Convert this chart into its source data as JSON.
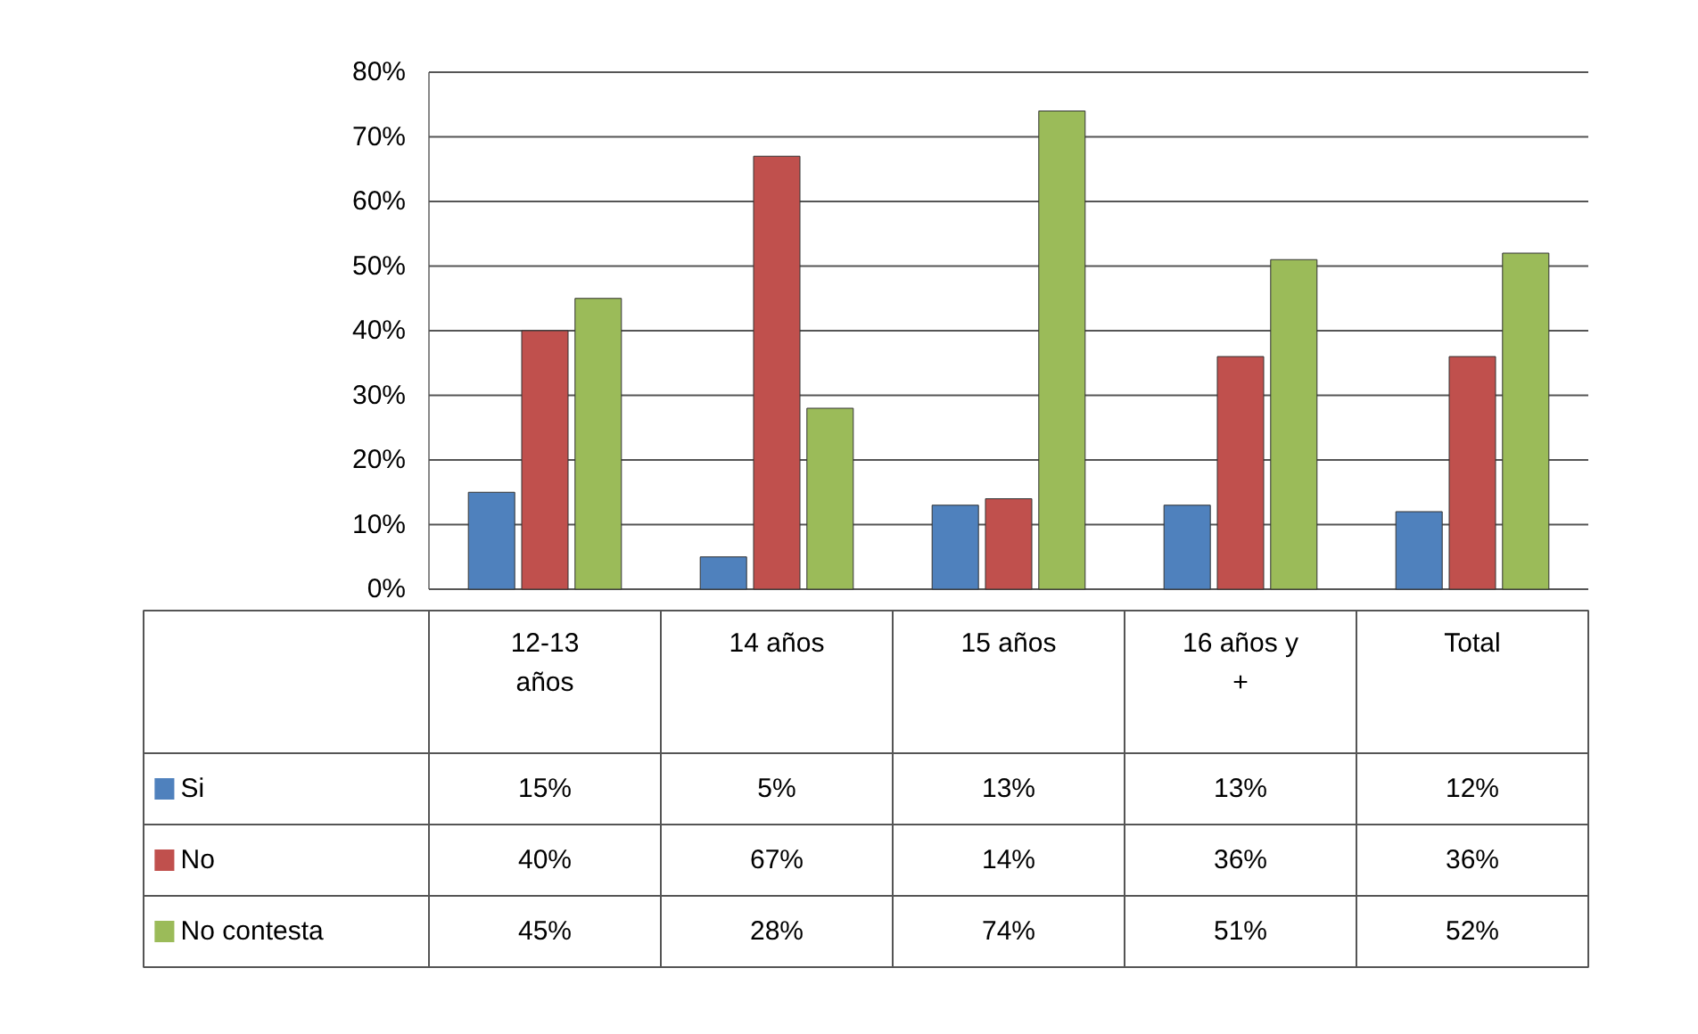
{
  "chart_data": {
    "type": "bar",
    "categories": [
      "12-13 años",
      "14 años",
      "15 años",
      "16 años y +",
      "Total"
    ],
    "series": [
      {
        "name": "Si",
        "color": "#4f81bd",
        "values": [
          15,
          5,
          13,
          13,
          12
        ],
        "value_labels": [
          "15%",
          "5%",
          "13%",
          "13%",
          "12%"
        ]
      },
      {
        "name": "No",
        "color": "#c0504d",
        "values": [
          40,
          67,
          14,
          36,
          36
        ],
        "value_labels": [
          "40%",
          "67%",
          "14%",
          "36%",
          "36%"
        ]
      },
      {
        "name": "No contesta",
        "color": "#9bbb59",
        "values": [
          45,
          28,
          74,
          51,
          52
        ],
        "value_labels": [
          "45%",
          "28%",
          "74%",
          "51%",
          "52%"
        ]
      }
    ],
    "ylim": [
      0,
      80
    ],
    "yticks": [
      {
        "value": 0,
        "label": "0%"
      },
      {
        "value": 10,
        "label": "10%"
      },
      {
        "value": 20,
        "label": "20%"
      },
      {
        "value": 30,
        "label": "30%"
      },
      {
        "value": 40,
        "label": "40%"
      },
      {
        "value": 50,
        "label": "50%"
      },
      {
        "value": 60,
        "label": "60%"
      },
      {
        "value": 70,
        "label": "70%"
      },
      {
        "value": 80,
        "label": "80%"
      }
    ],
    "grid": "y",
    "legend": "bottom"
  }
}
